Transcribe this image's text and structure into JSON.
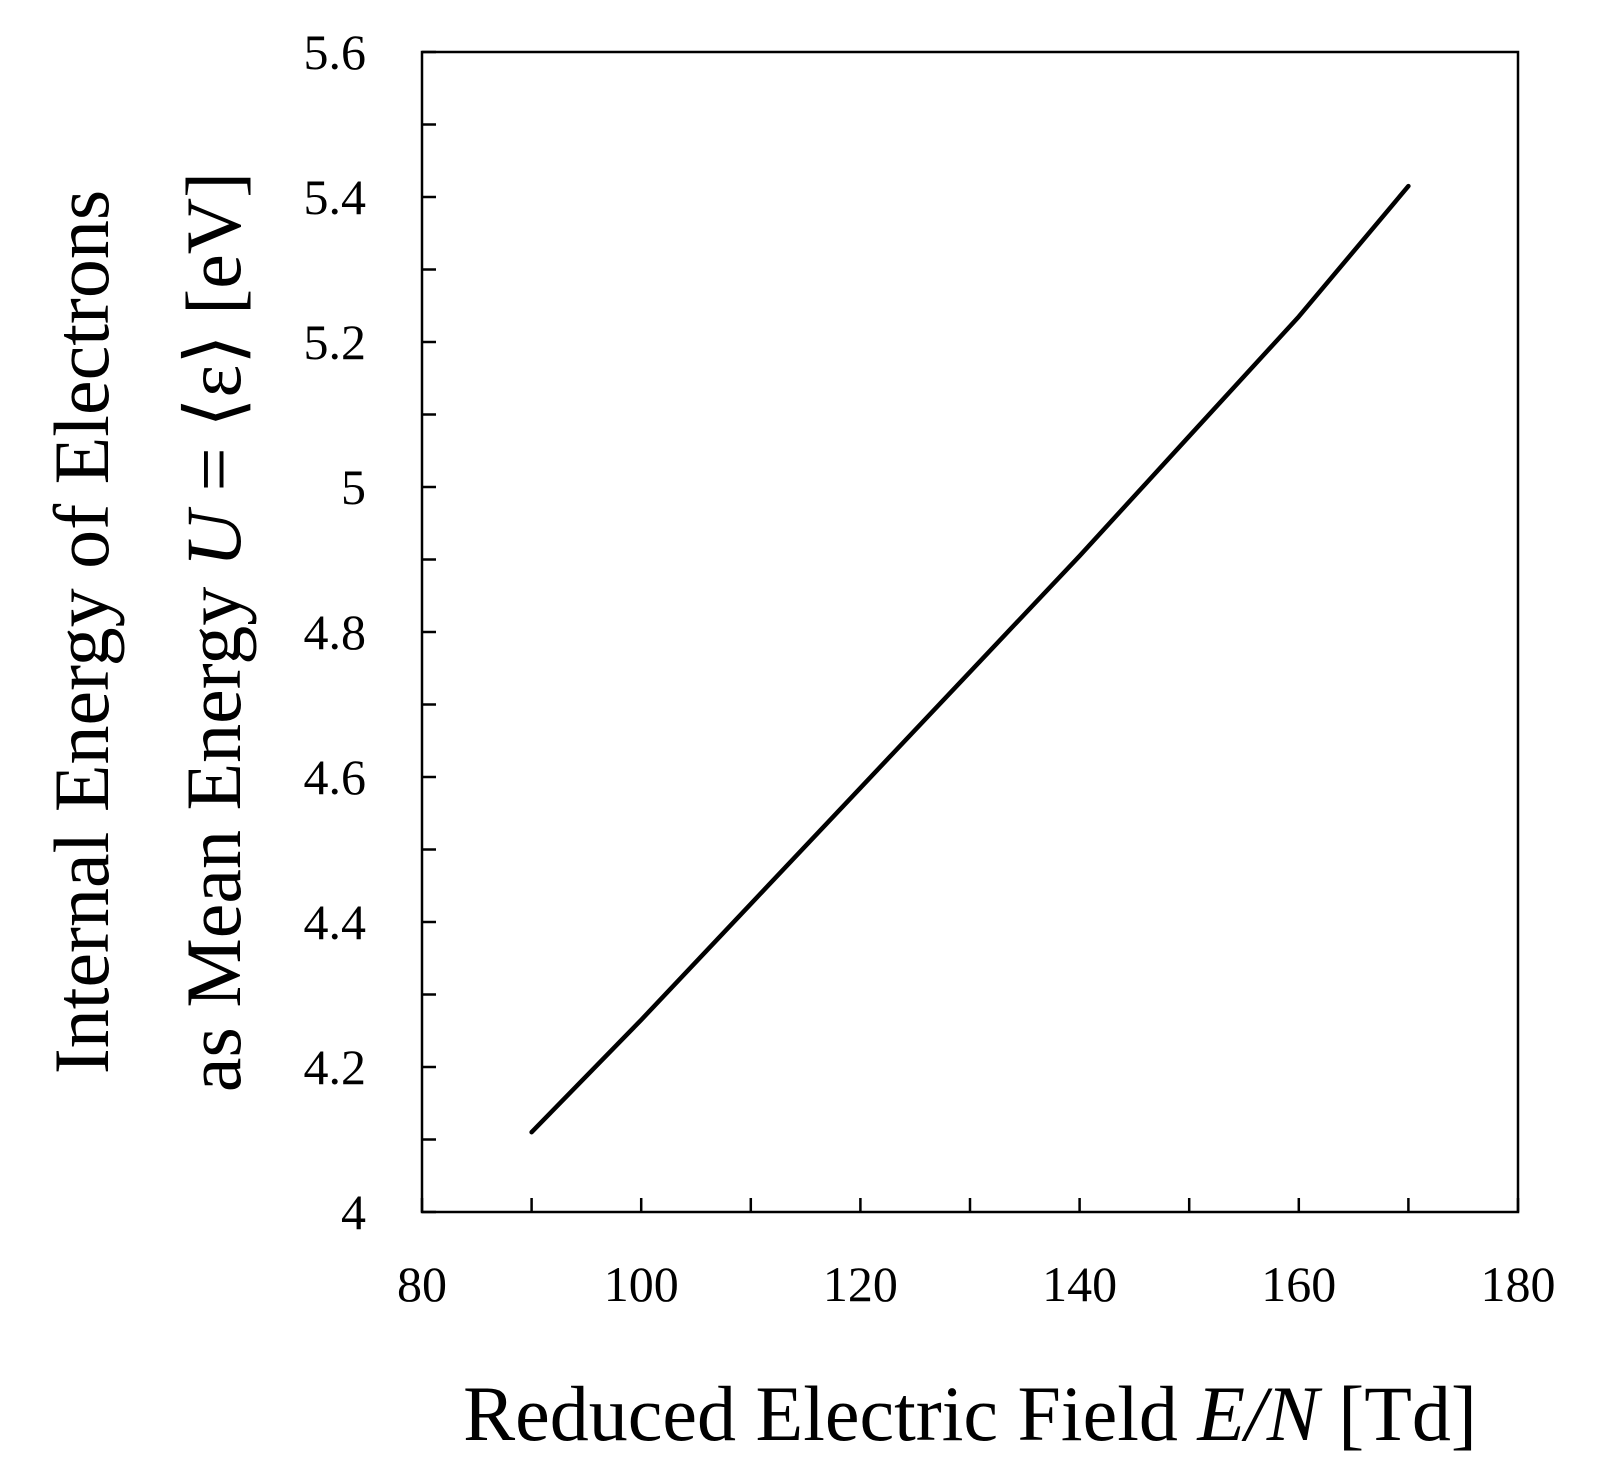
{
  "chart_data": {
    "type": "line",
    "title": "",
    "xlabel": {
      "prefix": "Reduced Electric Field ",
      "symbol": "E/N",
      "unit": " [Td]"
    },
    "ylabel": {
      "line1": "Internal Energy of Electrons",
      "line2_prefix": "as Mean Energy  ",
      "line2_symbol": "U",
      "line2_suffix": " = ⟨ε⟩ [eV]"
    },
    "xlim": [
      80,
      180
    ],
    "ylim": [
      4,
      5.6
    ],
    "x_ticks": [
      80,
      100,
      120,
      140,
      160,
      180
    ],
    "x_tick_labels": [
      "80",
      "100",
      "120",
      "140",
      "160",
      "180"
    ],
    "x_minor_step": 10,
    "y_ticks": [
      4,
      4.2,
      4.4,
      4.6,
      4.8,
      5,
      5.2,
      5.4,
      5.6
    ],
    "y_tick_labels": [
      "4",
      "4.2",
      "4.4",
      "4.6",
      "4.8",
      "5",
      "5.2",
      "5.4",
      "5.6"
    ],
    "y_minor_step": 0.1,
    "grid": false,
    "legend": "none",
    "series": [
      {
        "color": "#000000",
        "x": [
          90,
          100,
          110,
          120,
          130,
          140,
          150,
          160,
          170
        ],
        "y": [
          4.11,
          4.265,
          4.425,
          4.585,
          4.745,
          4.905,
          5.07,
          5.235,
          5.415
        ]
      }
    ]
  }
}
